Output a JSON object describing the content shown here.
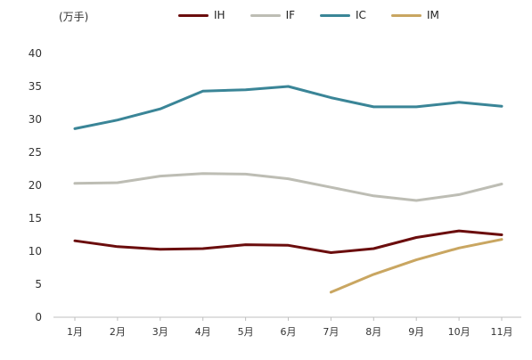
{
  "unit_label": "(万手)",
  "chart_data": {
    "type": "line",
    "categories": [
      "1月",
      "2月",
      "3月",
      "4月",
      "5月",
      "6月",
      "7月",
      "8月",
      "9月",
      "10月",
      "11月"
    ],
    "ylim": [
      0,
      40
    ],
    "yticks": [
      0,
      5,
      10,
      15,
      20,
      25,
      30,
      35,
      40
    ],
    "grid": false,
    "legend_position": "top",
    "series": [
      {
        "name": "IH",
        "color": "#6b0d0d",
        "values": [
          11.6,
          10.7,
          10.3,
          10.4,
          11.0,
          10.9,
          9.8,
          10.4,
          12.1,
          13.1,
          12.5
        ]
      },
      {
        "name": "IF",
        "color": "#bdbdb4",
        "values": [
          20.3,
          20.4,
          21.4,
          21.8,
          21.7,
          21.0,
          19.7,
          18.4,
          17.7,
          18.6,
          20.2
        ]
      },
      {
        "name": "IC",
        "color": "#3a8597",
        "values": [
          28.6,
          29.9,
          31.6,
          34.3,
          34.5,
          35.0,
          33.3,
          31.9,
          31.9,
          32.6,
          32.0
        ]
      },
      {
        "name": "IM",
        "color": "#c9a661",
        "values": [
          null,
          null,
          null,
          null,
          null,
          null,
          3.8,
          6.5,
          8.7,
          10.5,
          11.8
        ]
      }
    ]
  }
}
